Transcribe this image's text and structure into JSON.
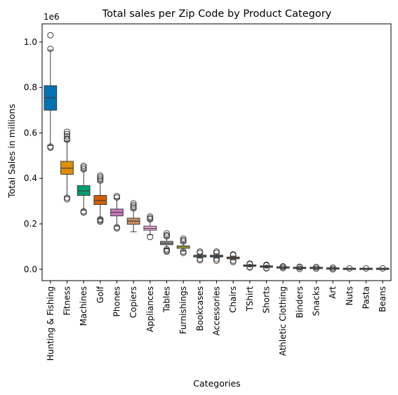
{
  "chart_data": {
    "type": "boxplot",
    "title": "Total sales per Zip Code by Product Category",
    "xlabel": "Categories",
    "ylabel": "Total Sales in millions",
    "y_offset_label": "1e6",
    "ylim": [
      -0.05,
      1.08
    ],
    "yticks": [
      0.0,
      0.2,
      0.4,
      0.6,
      0.8,
      1.0
    ],
    "ytick_labels": [
      "0.0",
      "0.2",
      "0.4",
      "0.6",
      "0.8",
      "1.0"
    ],
    "grid": false,
    "legend": "none",
    "categories": [
      "Hunting & Fishing",
      "Fitness",
      "Machines",
      "Golf",
      "Phones",
      "Copiers",
      "Appliances",
      "Tables",
      "Furnishings",
      "Bookcases",
      "Accessories",
      "Chairs",
      "TShirt",
      "Shorts",
      "Athletic Clothing",
      "Binders",
      "Snacks",
      "Art",
      "Nuts",
      "Pasta",
      "Beans"
    ],
    "boxes": [
      {
        "category": "Hunting & Fishing",
        "color": "#0173b2",
        "whisker_low": 0.545,
        "q1": 0.7,
        "median": 0.755,
        "q3": 0.808,
        "whisker_high": 0.965,
        "outliers": [
          1.03,
          0.97,
          0.54,
          0.535
        ]
      },
      {
        "category": "Fitness",
        "color": "#de8f05",
        "whisker_low": 0.32,
        "q1": 0.418,
        "median": 0.445,
        "q3": 0.475,
        "whisker_high": 0.565,
        "outliers": [
          0.605,
          0.595,
          0.585,
          0.575,
          0.57,
          0.315,
          0.308
        ]
      },
      {
        "category": "Machines",
        "color": "#029e73",
        "whisker_low": 0.26,
        "q1": 0.325,
        "median": 0.345,
        "q3": 0.368,
        "whisker_high": 0.435,
        "outliers": [
          0.455,
          0.448,
          0.44,
          0.255,
          0.25
        ]
      },
      {
        "category": "Golf",
        "color": "#d55e00",
        "whisker_low": 0.225,
        "q1": 0.285,
        "median": 0.303,
        "q3": 0.325,
        "whisker_high": 0.385,
        "outliers": [
          0.412,
          0.405,
          0.398,
          0.39,
          0.22,
          0.215,
          0.21
        ]
      },
      {
        "category": "Phones",
        "color": "#cc78bc",
        "whisker_low": 0.19,
        "q1": 0.235,
        "median": 0.25,
        "q3": 0.265,
        "whisker_high": 0.31,
        "outliers": [
          0.322,
          0.316,
          0.185,
          0.18
        ]
      },
      {
        "category": "Copiers",
        "color": "#ca9161",
        "whisker_low": 0.165,
        "q1": 0.198,
        "median": 0.212,
        "q3": 0.225,
        "whisker_high": 0.262,
        "outliers": [
          0.29,
          0.282,
          0.275,
          0.268
        ]
      },
      {
        "category": "Appliances",
        "color": "#fbafe4",
        "whisker_low": 0.152,
        "q1": 0.172,
        "median": 0.18,
        "q3": 0.19,
        "whisker_high": 0.215,
        "outliers": [
          0.232,
          0.225,
          0.22,
          0.142
        ]
      },
      {
        "category": "Tables",
        "color": "#949494",
        "whisker_low": 0.092,
        "q1": 0.108,
        "median": 0.115,
        "q3": 0.123,
        "whisker_high": 0.14,
        "outliers": [
          0.158,
          0.15,
          0.145,
          0.088,
          0.082,
          0.078
        ]
      },
      {
        "category": "Furnishings",
        "color": "#ece133",
        "whisker_low": 0.08,
        "q1": 0.092,
        "median": 0.098,
        "q3": 0.103,
        "whisker_high": 0.118,
        "outliers": [
          0.135,
          0.128,
          0.122,
          0.078,
          0.072
        ]
      },
      {
        "category": "Bookcases",
        "color": "#56b4e9",
        "whisker_low": 0.05,
        "q1": 0.054,
        "median": 0.058,
        "q3": 0.062,
        "whisker_high": 0.066,
        "outliers": [
          0.078,
          0.072,
          0.045,
          0.04
        ]
      },
      {
        "category": "Accessories",
        "color": "#0173b2",
        "whisker_low": 0.05,
        "q1": 0.054,
        "median": 0.058,
        "q3": 0.062,
        "whisker_high": 0.068,
        "outliers": [
          0.078,
          0.072,
          0.045,
          0.038
        ]
      },
      {
        "category": "Chairs",
        "color": "#de8f05",
        "whisker_low": 0.042,
        "q1": 0.046,
        "median": 0.05,
        "q3": 0.054,
        "whisker_high": 0.058,
        "outliers": [
          0.066,
          0.062,
          0.038,
          0.032
        ]
      },
      {
        "category": "TShirt",
        "color": "#029e73",
        "whisker_low": 0.012,
        "q1": 0.014,
        "median": 0.016,
        "q3": 0.018,
        "whisker_high": 0.02,
        "outliers": [
          0.025,
          0.022,
          0.01,
          0.008
        ]
      },
      {
        "category": "Shorts",
        "color": "#d55e00",
        "whisker_low": 0.008,
        "q1": 0.01,
        "median": 0.012,
        "q3": 0.014,
        "whisker_high": 0.016,
        "outliers": [
          0.02,
          0.017,
          0.006,
          0.004
        ]
      },
      {
        "category": "Athletic Clothing",
        "color": "#cc78bc",
        "whisker_low": 0.006,
        "q1": 0.007,
        "median": 0.008,
        "q3": 0.009,
        "whisker_high": 0.01,
        "outliers": [
          0.013,
          0.011,
          0.005
        ]
      },
      {
        "category": "Binders",
        "color": "#ca9161",
        "whisker_low": 0.004,
        "q1": 0.005,
        "median": 0.006,
        "q3": 0.007,
        "whisker_high": 0.008,
        "outliers": [
          0.011,
          0.009,
          0.002
        ]
      },
      {
        "category": "Snacks",
        "color": "#fbafe4",
        "whisker_low": 0.004,
        "q1": 0.005,
        "median": 0.006,
        "q3": 0.007,
        "whisker_high": 0.008,
        "outliers": [
          0.01,
          0.009,
          0.003
        ]
      },
      {
        "category": "Art",
        "color": "#949494",
        "whisker_low": 0.002,
        "q1": 0.003,
        "median": 0.0035,
        "q3": 0.004,
        "whisker_high": 0.005,
        "outliers": [
          0.007,
          0.001,
          0.0
        ]
      },
      {
        "category": "Nuts",
        "color": "#ece133",
        "whisker_low": 0.001,
        "q1": 0.0015,
        "median": 0.002,
        "q3": 0.0025,
        "whisker_high": 0.003,
        "outliers": [
          0.004
        ]
      },
      {
        "category": "Pasta",
        "color": "#56b4e9",
        "whisker_low": 0.001,
        "q1": 0.0015,
        "median": 0.002,
        "q3": 0.0025,
        "whisker_high": 0.003,
        "outliers": [
          0.004
        ]
      },
      {
        "category": "Beans",
        "color": "#0173b2",
        "whisker_low": 0.001,
        "q1": 0.0015,
        "median": 0.002,
        "q3": 0.0025,
        "whisker_high": 0.003,
        "outliers": [
          0.004
        ]
      }
    ]
  }
}
